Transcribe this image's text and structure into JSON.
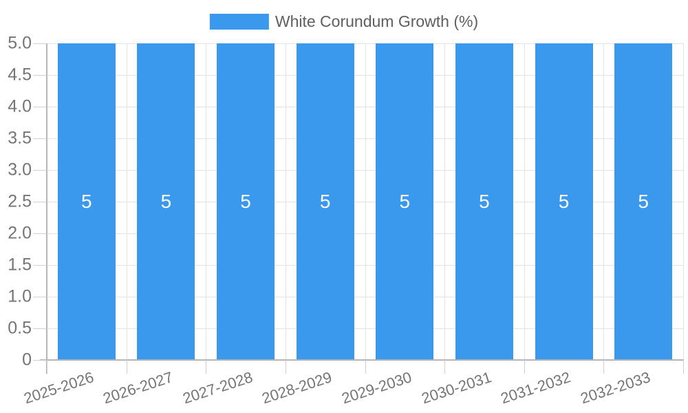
{
  "legend": {
    "label": "White Corundum Growth (%)"
  },
  "chart_data": {
    "type": "bar",
    "title": "",
    "categories": [
      "2025-2026",
      "2026-2027",
      "2027-2028",
      "2028-2029",
      "2029-2030",
      "2030-2031",
      "2031-2032",
      "2032-2033"
    ],
    "series": [
      {
        "name": "White Corundum Growth (%)",
        "values": [
          5,
          5,
          5,
          5,
          5,
          5,
          5,
          5
        ]
      }
    ],
    "bar_value_labels": [
      "5",
      "5",
      "5",
      "5",
      "5",
      "5",
      "5",
      "5"
    ],
    "y_tick_labels": [
      "0",
      "0.5",
      "1.0",
      "1.5",
      "2.0",
      "2.5",
      "3.0",
      "3.5",
      "4.0",
      "4.5",
      "5.0"
    ],
    "y_tick_values": [
      0,
      0.5,
      1,
      1.5,
      2,
      2.5,
      3,
      3.5,
      4,
      4.5,
      5
    ],
    "ylim": [
      0,
      5
    ],
    "xlabel": "",
    "ylabel": "",
    "grid": true,
    "legend_position": "top-center",
    "x_label_rotation_deg": -18,
    "colors": {
      "bar": "#3b99ed",
      "grid": "#e3e3e3",
      "axis": "#b5b5b5",
      "tick": "#d0d0d0",
      "axis_text": "#757575",
      "legend_text": "#5f5f5f",
      "bar_label": "#ffffff",
      "background": "#ffffff"
    }
  }
}
